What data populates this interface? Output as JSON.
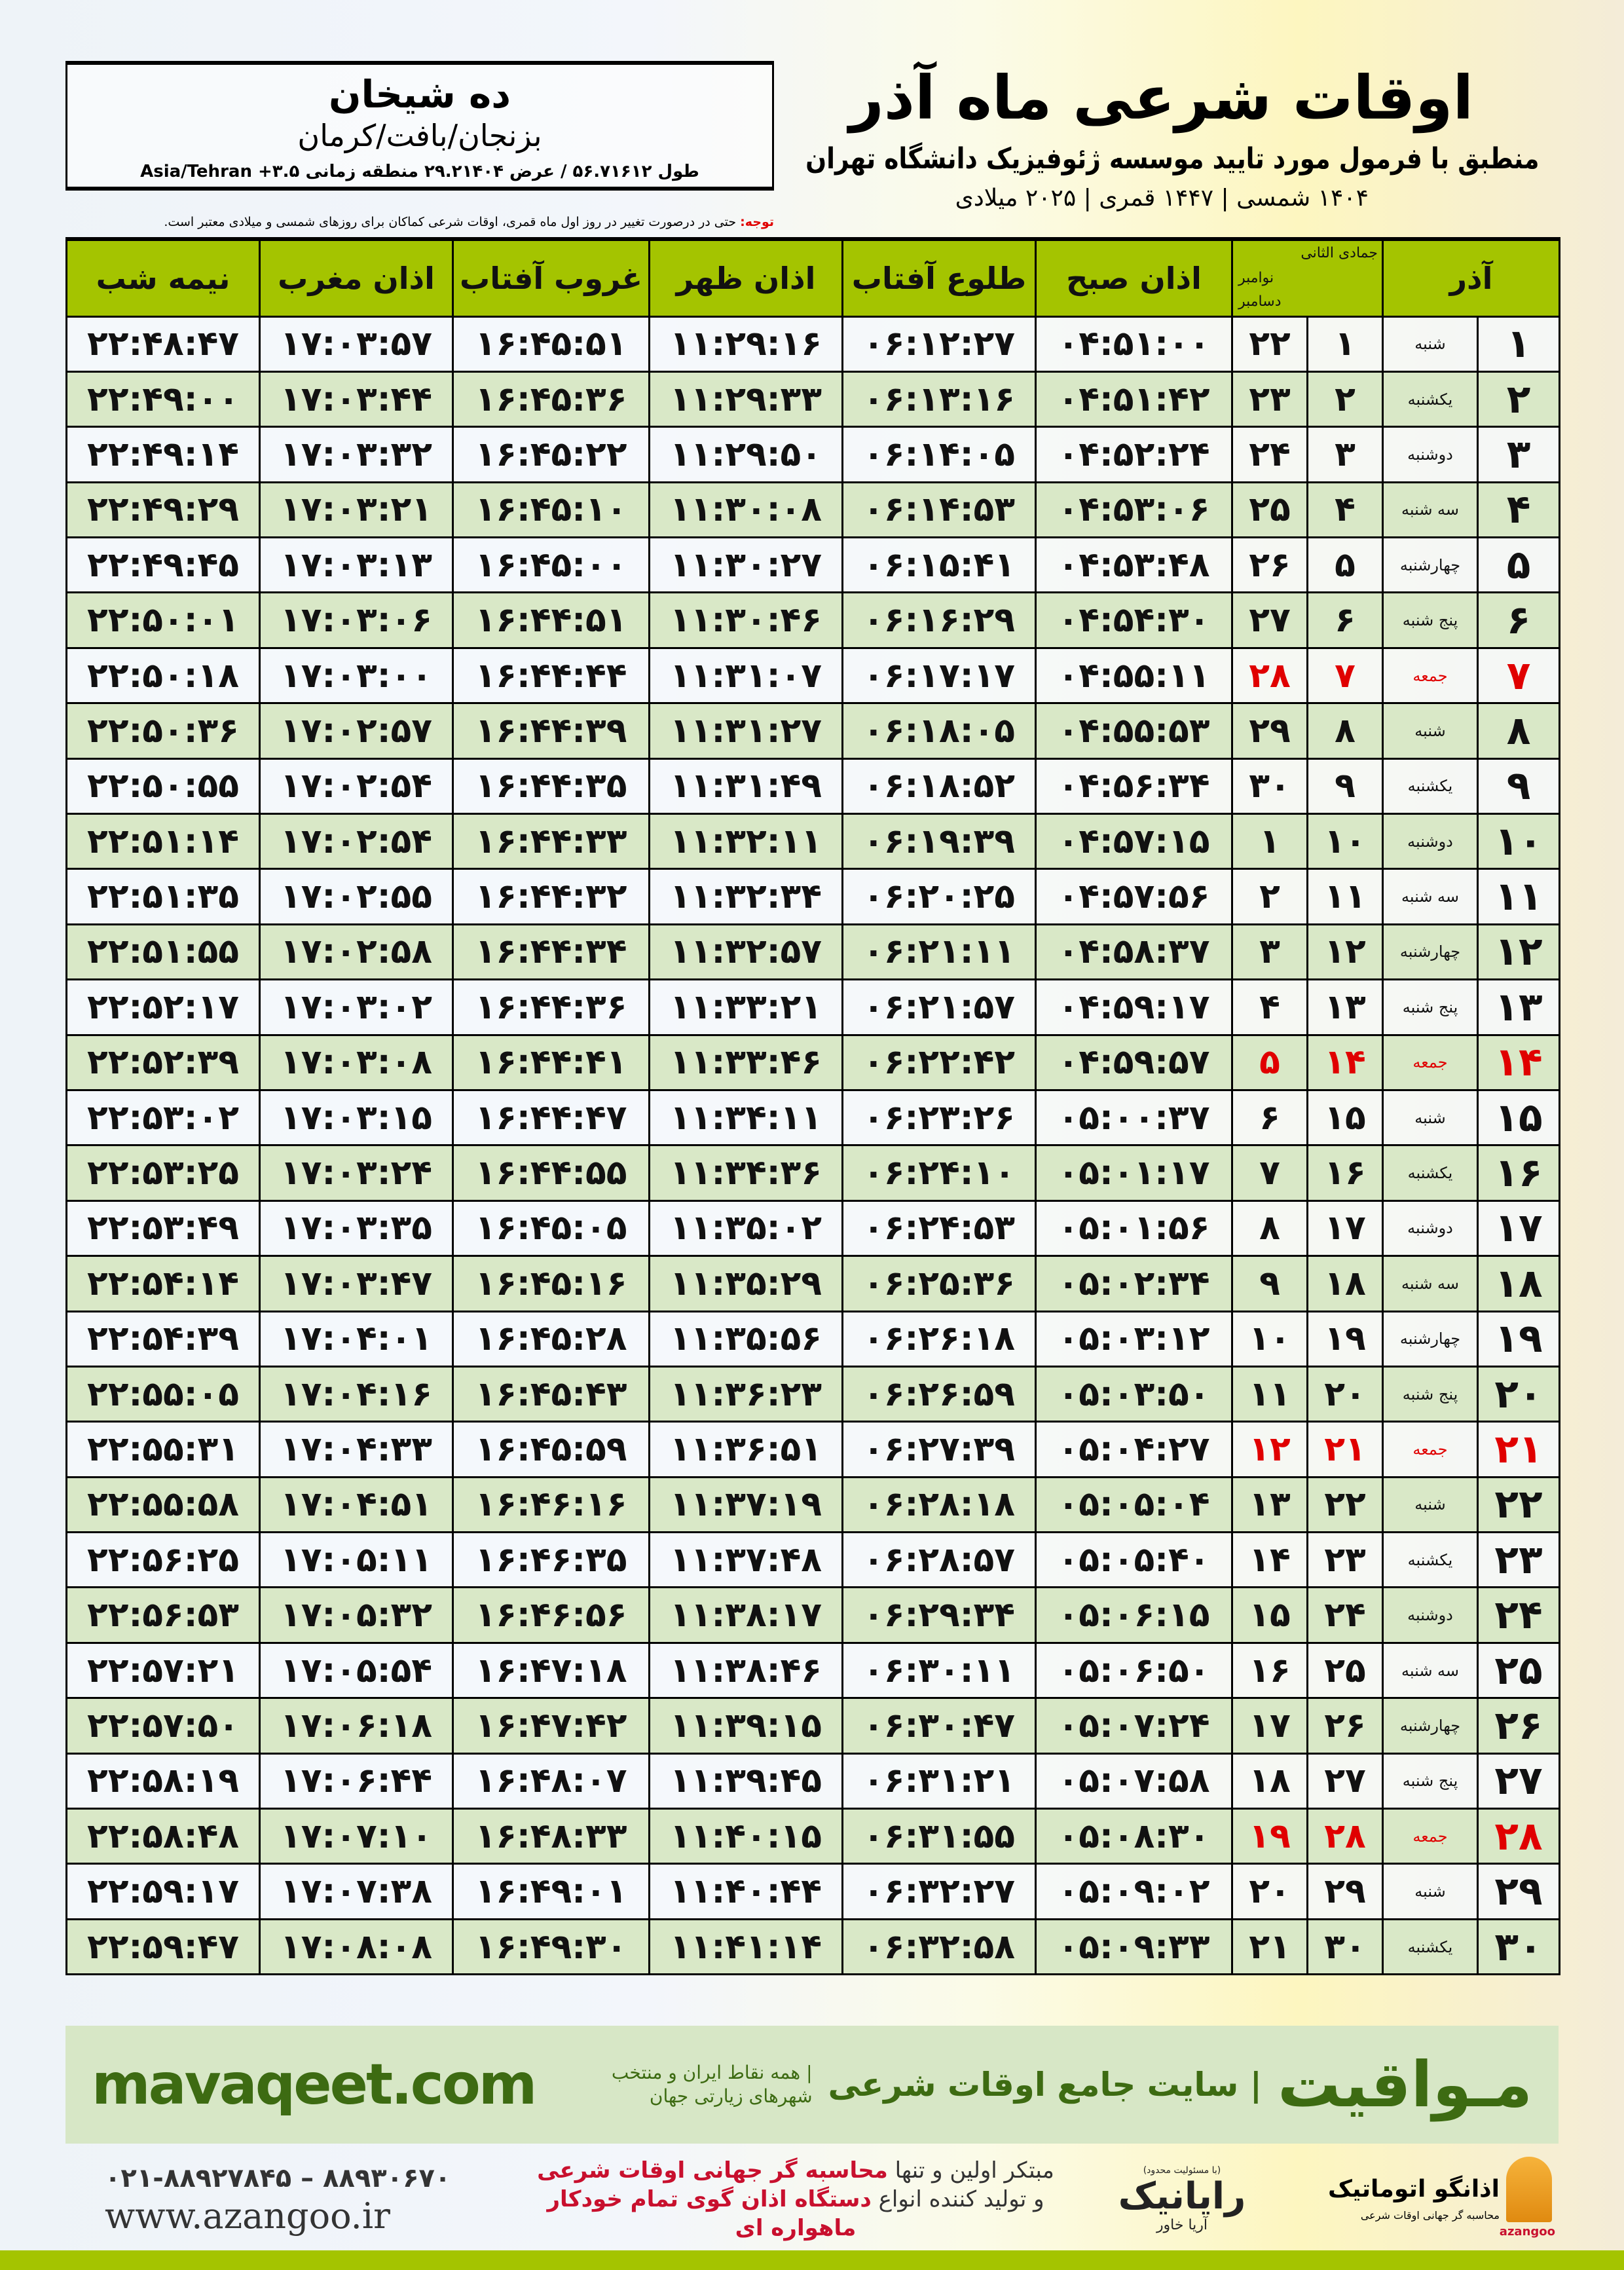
{
  "header": {
    "title": "اوقات شرعی ماه آذر",
    "subtitle": "منطبق با فرمول مورد تایید موسسه ژئوفیزیک دانشگاه تهران",
    "years": "۱۴۰۴ شمسی | ۱۴۴۷ قمری | ۲۰۲۵ میلادی"
  },
  "location": {
    "city": "ده شیخان",
    "region": "بزنجان/بافت/کرمان",
    "coords": "طول ۵۶.۷۱۶۱۲ / عرض ۲۹.۲۱۴۰۴ منطقه زمانی ۳.۵+ Asia/Tehran"
  },
  "note": {
    "label": "توجه:",
    "text": " حتی در درصورت تغییر در روز اول ماه قمری، اوقات شرعی کماکان برای روزهای شمسی و میلادی معتبر است."
  },
  "table": {
    "headers": {
      "azar": "آذر",
      "hijri": "جمادی الثانی",
      "gregorian_top": "نوامبر",
      "gregorian": "دسامبر",
      "fajr": "اذان صبح",
      "sunrise": "طلوع آفتاب",
      "dhuhr": "اذان ظهر",
      "sunset": "غروب آفتاب",
      "maghrib": "اذان مغرب",
      "midnight": "نیمه شب"
    },
    "holiday_color": "#e00000",
    "header_color": "#a4c400",
    "rows": [
      [
        "۱",
        "شنبه",
        "۱",
        "۲۲",
        "۰۴:۵۱:۰۰",
        "۰۶:۱۲:۲۷",
        "۱۱:۲۹:۱۶",
        "۱۶:۴۵:۵۱",
        "۱۷:۰۳:۵۷",
        "۲۲:۴۸:۴۷",
        false
      ],
      [
        "۲",
        "یکشنبه",
        "۲",
        "۲۳",
        "۰۴:۵۱:۴۲",
        "۰۶:۱۳:۱۶",
        "۱۱:۲۹:۳۳",
        "۱۶:۴۵:۳۶",
        "۱۷:۰۳:۴۴",
        "۲۲:۴۹:۰۰",
        false
      ],
      [
        "۳",
        "دوشنبه",
        "۳",
        "۲۴",
        "۰۴:۵۲:۲۴",
        "۰۶:۱۴:۰۵",
        "۱۱:۲۹:۵۰",
        "۱۶:۴۵:۲۲",
        "۱۷:۰۳:۳۲",
        "۲۲:۴۹:۱۴",
        false
      ],
      [
        "۴",
        "سه شنبه",
        "۴",
        "۲۵",
        "۰۴:۵۳:۰۶",
        "۰۶:۱۴:۵۳",
        "۱۱:۳۰:۰۸",
        "۱۶:۴۵:۱۰",
        "۱۷:۰۳:۲۱",
        "۲۲:۴۹:۲۹",
        false
      ],
      [
        "۵",
        "چهارشنبه",
        "۵",
        "۲۶",
        "۰۴:۵۳:۴۸",
        "۰۶:۱۵:۴۱",
        "۱۱:۳۰:۲۷",
        "۱۶:۴۵:۰۰",
        "۱۷:۰۳:۱۳",
        "۲۲:۴۹:۴۵",
        false
      ],
      [
        "۶",
        "پنج شنبه",
        "۶",
        "۲۷",
        "۰۴:۵۴:۳۰",
        "۰۶:۱۶:۲۹",
        "۱۱:۳۰:۴۶",
        "۱۶:۴۴:۵۱",
        "۱۷:۰۳:۰۶",
        "۲۲:۵۰:۰۱",
        false
      ],
      [
        "۷",
        "جمعه",
        "۷",
        "۲۸",
        "۰۴:۵۵:۱۱",
        "۰۶:۱۷:۱۷",
        "۱۱:۳۱:۰۷",
        "۱۶:۴۴:۴۴",
        "۱۷:۰۳:۰۰",
        "۲۲:۵۰:۱۸",
        true
      ],
      [
        "۸",
        "شنبه",
        "۸",
        "۲۹",
        "۰۴:۵۵:۵۳",
        "۰۶:۱۸:۰۵",
        "۱۱:۳۱:۲۷",
        "۱۶:۴۴:۳۹",
        "۱۷:۰۲:۵۷",
        "۲۲:۵۰:۳۶",
        false
      ],
      [
        "۹",
        "یکشنبه",
        "۹",
        "۳۰",
        "۰۴:۵۶:۳۴",
        "۰۶:۱۸:۵۲",
        "۱۱:۳۱:۴۹",
        "۱۶:۴۴:۳۵",
        "۱۷:۰۲:۵۴",
        "۲۲:۵۰:۵۵",
        false
      ],
      [
        "۱۰",
        "دوشنبه",
        "۱۰",
        "۱",
        "۰۴:۵۷:۱۵",
        "۰۶:۱۹:۳۹",
        "۱۱:۳۲:۱۱",
        "۱۶:۴۴:۳۳",
        "۱۷:۰۲:۵۴",
        "۲۲:۵۱:۱۴",
        false
      ],
      [
        "۱۱",
        "سه شنبه",
        "۱۱",
        "۲",
        "۰۴:۵۷:۵۶",
        "۰۶:۲۰:۲۵",
        "۱۱:۳۲:۳۴",
        "۱۶:۴۴:۳۲",
        "۱۷:۰۲:۵۵",
        "۲۲:۵۱:۳۵",
        false
      ],
      [
        "۱۲",
        "چهارشنبه",
        "۱۲",
        "۳",
        "۰۴:۵۸:۳۷",
        "۰۶:۲۱:۱۱",
        "۱۱:۳۲:۵۷",
        "۱۶:۴۴:۳۴",
        "۱۷:۰۲:۵۸",
        "۲۲:۵۱:۵۵",
        false
      ],
      [
        "۱۳",
        "پنج شنبه",
        "۱۳",
        "۴",
        "۰۴:۵۹:۱۷",
        "۰۶:۲۱:۵۷",
        "۱۱:۳۳:۲۱",
        "۱۶:۴۴:۳۶",
        "۱۷:۰۳:۰۲",
        "۲۲:۵۲:۱۷",
        false
      ],
      [
        "۱۴",
        "جمعه",
        "۱۴",
        "۵",
        "۰۴:۵۹:۵۷",
        "۰۶:۲۲:۴۲",
        "۱۱:۳۳:۴۶",
        "۱۶:۴۴:۴۱",
        "۱۷:۰۳:۰۸",
        "۲۲:۵۲:۳۹",
        true
      ],
      [
        "۱۵",
        "شنبه",
        "۱۵",
        "۶",
        "۰۵:۰۰:۳۷",
        "۰۶:۲۳:۲۶",
        "۱۱:۳۴:۱۱",
        "۱۶:۴۴:۴۷",
        "۱۷:۰۳:۱۵",
        "۲۲:۵۳:۰۲",
        false
      ],
      [
        "۱۶",
        "یکشنبه",
        "۱۶",
        "۷",
        "۰۵:۰۱:۱۷",
        "۰۶:۲۴:۱۰",
        "۱۱:۳۴:۳۶",
        "۱۶:۴۴:۵۵",
        "۱۷:۰۳:۲۴",
        "۲۲:۵۳:۲۵",
        false
      ],
      [
        "۱۷",
        "دوشنبه",
        "۱۷",
        "۸",
        "۰۵:۰۱:۵۶",
        "۰۶:۲۴:۵۳",
        "۱۱:۳۵:۰۲",
        "۱۶:۴۵:۰۵",
        "۱۷:۰۳:۳۵",
        "۲۲:۵۳:۴۹",
        false
      ],
      [
        "۱۸",
        "سه شنبه",
        "۱۸",
        "۹",
        "۰۵:۰۲:۳۴",
        "۰۶:۲۵:۳۶",
        "۱۱:۳۵:۲۹",
        "۱۶:۴۵:۱۶",
        "۱۷:۰۳:۴۷",
        "۲۲:۵۴:۱۴",
        false
      ],
      [
        "۱۹",
        "چهارشنبه",
        "۱۹",
        "۱۰",
        "۰۵:۰۳:۱۲",
        "۰۶:۲۶:۱۸",
        "۱۱:۳۵:۵۶",
        "۱۶:۴۵:۲۸",
        "۱۷:۰۴:۰۱",
        "۲۲:۵۴:۳۹",
        false
      ],
      [
        "۲۰",
        "پنج شنبه",
        "۲۰",
        "۱۱",
        "۰۵:۰۳:۵۰",
        "۰۶:۲۶:۵۹",
        "۱۱:۳۶:۲۳",
        "۱۶:۴۵:۴۳",
        "۱۷:۰۴:۱۶",
        "۲۲:۵۵:۰۵",
        false
      ],
      [
        "۲۱",
        "جمعه",
        "۲۱",
        "۱۲",
        "۰۵:۰۴:۲۷",
        "۰۶:۲۷:۳۹",
        "۱۱:۳۶:۵۱",
        "۱۶:۴۵:۵۹",
        "۱۷:۰۴:۳۳",
        "۲۲:۵۵:۳۱",
        true
      ],
      [
        "۲۲",
        "شنبه",
        "۲۲",
        "۱۳",
        "۰۵:۰۵:۰۴",
        "۰۶:۲۸:۱۸",
        "۱۱:۳۷:۱۹",
        "۱۶:۴۶:۱۶",
        "۱۷:۰۴:۵۱",
        "۲۲:۵۵:۵۸",
        false
      ],
      [
        "۲۳",
        "یکشنبه",
        "۲۳",
        "۱۴",
        "۰۵:۰۵:۴۰",
        "۰۶:۲۸:۵۷",
        "۱۱:۳۷:۴۸",
        "۱۶:۴۶:۳۵",
        "۱۷:۰۵:۱۱",
        "۲۲:۵۶:۲۵",
        false
      ],
      [
        "۲۴",
        "دوشنبه",
        "۲۴",
        "۱۵",
        "۰۵:۰۶:۱۵",
        "۰۶:۲۹:۳۴",
        "۱۱:۳۸:۱۷",
        "۱۶:۴۶:۵۶",
        "۱۷:۰۵:۳۲",
        "۲۲:۵۶:۵۳",
        false
      ],
      [
        "۲۵",
        "سه شنبه",
        "۲۵",
        "۱۶",
        "۰۵:۰۶:۵۰",
        "۰۶:۳۰:۱۱",
        "۱۱:۳۸:۴۶",
        "۱۶:۴۷:۱۸",
        "۱۷:۰۵:۵۴",
        "۲۲:۵۷:۲۱",
        false
      ],
      [
        "۲۶",
        "چهارشنبه",
        "۲۶",
        "۱۷",
        "۰۵:۰۷:۲۴",
        "۰۶:۳۰:۴۷",
        "۱۱:۳۹:۱۵",
        "۱۶:۴۷:۴۲",
        "۱۷:۰۶:۱۸",
        "۲۲:۵۷:۵۰",
        false
      ],
      [
        "۲۷",
        "پنج شنبه",
        "۲۷",
        "۱۸",
        "۰۵:۰۷:۵۸",
        "۰۶:۳۱:۲۱",
        "۱۱:۳۹:۴۵",
        "۱۶:۴۸:۰۷",
        "۱۷:۰۶:۴۴",
        "۲۲:۵۸:۱۹",
        false
      ],
      [
        "۲۸",
        "جمعه",
        "۲۸",
        "۱۹",
        "۰۵:۰۸:۳۰",
        "۰۶:۳۱:۵۵",
        "۱۱:۴۰:۱۵",
        "۱۶:۴۸:۳۳",
        "۱۷:۰۷:۱۰",
        "۲۲:۵۸:۴۸",
        true
      ],
      [
        "۲۹",
        "شنبه",
        "۲۹",
        "۲۰",
        "۰۵:۰۹:۰۲",
        "۰۶:۳۲:۲۷",
        "۱۱:۴۰:۴۴",
        "۱۶:۴۹:۰۱",
        "۱۷:۰۷:۳۸",
        "۲۲:۵۹:۱۷",
        false
      ],
      [
        "۳۰",
        "یکشنبه",
        "۳۰",
        "۲۱",
        "۰۵:۰۹:۳۳",
        "۰۶:۳۲:۵۸",
        "۱۱:۴۱:۱۴",
        "۱۶:۴۹:۳۰",
        "۱۷:۰۸:۰۸",
        "۲۲:۵۹:۴۷",
        false
      ]
    ]
  },
  "footer": {
    "mavaqeet_logo": "مـواقیت",
    "mavaqeet_tagline": "| سایت جامع اوقات شرعی",
    "mavaqeet_sub": "| همه نقاط ایران و منتخب شهرهای زیارتی جهان",
    "mavaqeet_url": "mavaqeet.com",
    "phone": "۰۲۱-۸۸۹۲۷۸۴۵ – ۸۸۹۳۰۶۷۰",
    "website": "www.azangoo.ir",
    "promo_line1_a": "مبتکر اولین و تنها ",
    "promo_line1_b": "محاسبه گر جهانی اوقات شرعی",
    "promo_line2_a": "و تولید کننده انواع ",
    "promo_line2_b": "دستگاه اذان گوی تمام خودکار ماهواره ای",
    "raynik_small": "(با مسئولیت محدود)",
    "raynik": "رایانیک",
    "raynik_sub": "آریا خاور",
    "azangoo_name": "اذانگو اتوماتیک",
    "azangoo_sub": "محاسبه گر جهانی اوقات شرعی",
    "azangoo_en": "azangoo",
    "brand_green": "#3d6b12",
    "promo_red": "#c8102e"
  }
}
